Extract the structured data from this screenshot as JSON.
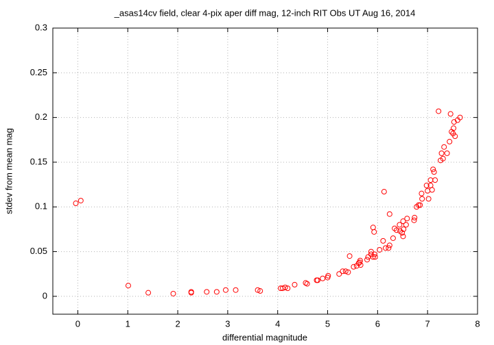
{
  "chart_data": {
    "type": "scatter",
    "title": "_asas14cv field, clear 4-pix aper diff mag,  12-inch RIT Obs UT Aug 16, 2014",
    "xlabel": "differential magnitude",
    "ylabel": "stdev from mean mag",
    "xlim": [
      -0.5,
      8
    ],
    "ylim": [
      -0.02,
      0.3
    ],
    "xticks": [
      0,
      1,
      2,
      3,
      4,
      5,
      6,
      7,
      8
    ],
    "yticks": [
      0,
      0.05,
      0.1,
      0.15,
      0.2,
      0.25,
      0.3
    ],
    "grid": true,
    "color": "#ff0000",
    "x": [
      -0.04,
      0.06,
      1.01,
      1.41,
      1.91,
      2.27,
      2.27,
      2.58,
      2.78,
      2.96,
      3.16,
      3.6,
      3.65,
      4.06,
      4.1,
      4.15,
      4.2,
      4.34,
      4.56,
      4.59,
      4.78,
      4.8,
      4.9,
      5.0,
      5.01,
      5.23,
      5.3,
      5.36,
      5.41,
      5.44,
      5.52,
      5.58,
      5.62,
      5.65,
      5.66,
      5.64,
      5.79,
      5.81,
      5.87,
      5.87,
      5.91,
      5.91,
      5.93,
      5.94,
      5.95,
      6.04,
      6.11,
      6.13,
      6.16,
      6.22,
      6.24,
      6.24,
      6.31,
      6.34,
      6.38,
      6.44,
      6.45,
      6.51,
      6.49,
      6.51,
      6.52,
      6.57,
      6.59,
      6.73,
      6.74,
      6.78,
      6.82,
      6.85,
      6.88,
      6.89,
      6.98,
      7.0,
      7.02,
      7.06,
      7.06,
      7.09,
      7.11,
      7.13,
      7.15,
      7.22,
      7.26,
      7.28,
      7.31,
      7.33,
      7.39,
      7.44,
      7.46,
      7.48,
      7.51,
      7.52,
      7.53,
      7.55,
      7.6,
      7.65
    ],
    "values": [
      0.104,
      0.107,
      0.012,
      0.004,
      0.003,
      0.005,
      0.004,
      0.005,
      0.005,
      0.007,
      0.007,
      0.007,
      0.006,
      0.009,
      0.009,
      0.01,
      0.009,
      0.013,
      0.015,
      0.014,
      0.018,
      0.018,
      0.02,
      0.021,
      0.023,
      0.025,
      0.028,
      0.028,
      0.027,
      0.045,
      0.033,
      0.034,
      0.037,
      0.04,
      0.035,
      0.038,
      0.041,
      0.044,
      0.047,
      0.05,
      0.044,
      0.077,
      0.072,
      0.047,
      0.044,
      0.052,
      0.062,
      0.117,
      0.054,
      0.054,
      0.057,
      0.092,
      0.065,
      0.076,
      0.074,
      0.08,
      0.073,
      0.084,
      0.071,
      0.067,
      0.075,
      0.08,
      0.087,
      0.085,
      0.088,
      0.1,
      0.102,
      0.102,
      0.115,
      0.109,
      0.124,
      0.118,
      0.109,
      0.13,
      0.124,
      0.119,
      0.142,
      0.139,
      0.13,
      0.207,
      0.152,
      0.16,
      0.154,
      0.167,
      0.16,
      0.173,
      0.204,
      0.184,
      0.182,
      0.188,
      0.195,
      0.179,
      0.197,
      0.2
    ]
  }
}
